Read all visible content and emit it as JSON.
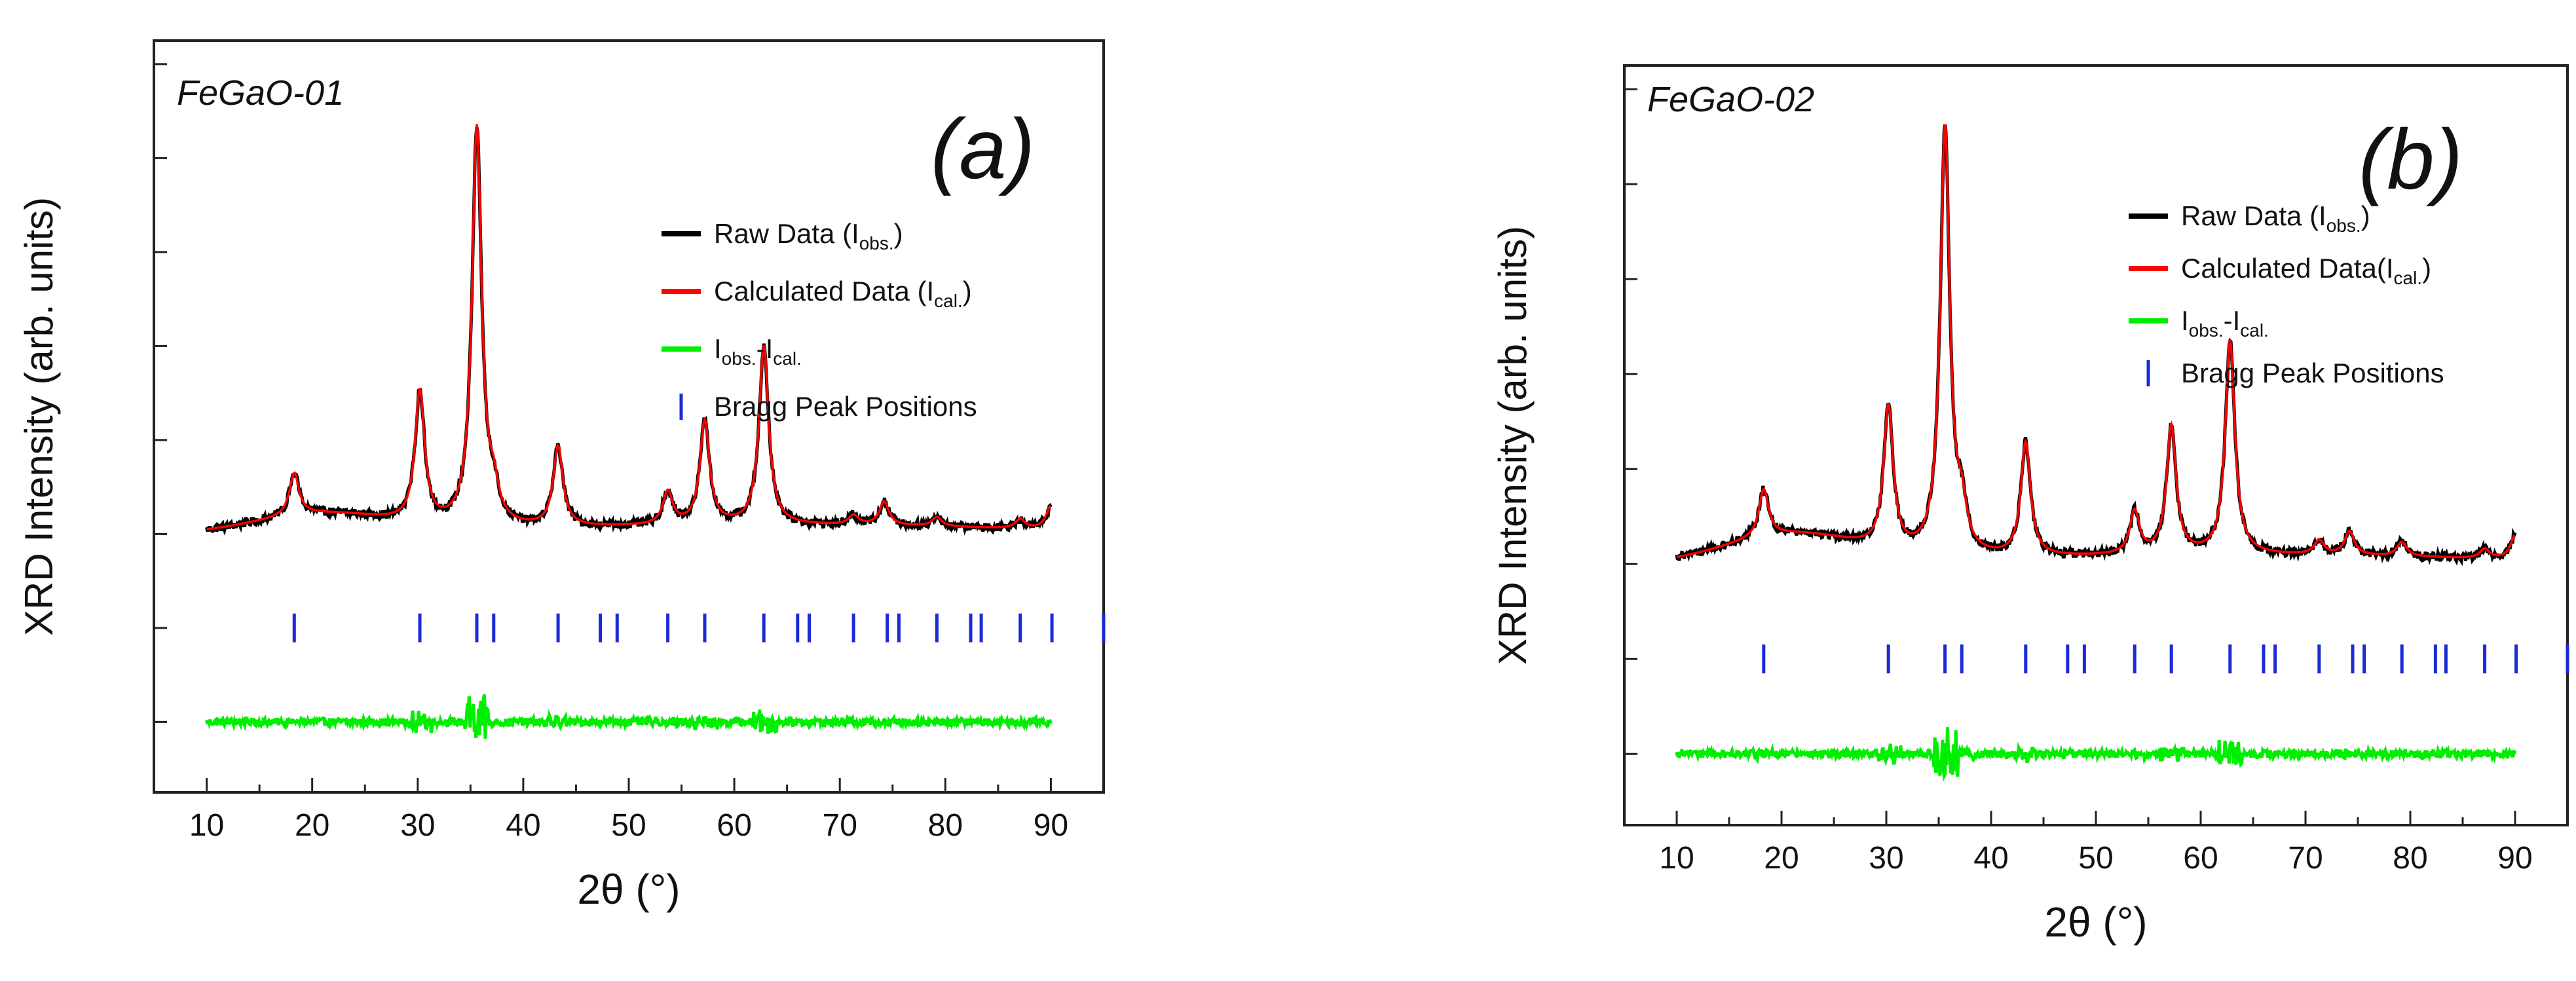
{
  "chart_data": [
    {
      "type": "line",
      "panel_label": "(a)",
      "sample": "FeGaO-01",
      "xlabel": "2θ (°)",
      "ylabel": "XRD  Intensity (arb. units)",
      "xlim": [
        5,
        95
      ],
      "ylim": [
        -0.55,
        1.05
      ],
      "xticks": [
        10,
        20,
        30,
        40,
        50,
        60,
        70,
        80,
        90
      ],
      "legend": {
        "position": "upper-right",
        "entries": [
          {
            "label": "Raw Data (I",
            "sub": "obs.",
            "tail": ")",
            "color": "#000000",
            "style": "line"
          },
          {
            "label": "Calculated Data (I",
            "sub": "cal.",
            "tail": ")",
            "color": "#ff0000",
            "style": "line"
          },
          {
            "label": "I",
            "sub": "obs.",
            "mid": "-I",
            "sub2": "cal.",
            "tail": "",
            "color": "#00ee00",
            "style": "line"
          },
          {
            "label": "Bragg Peak Positions",
            "sub": "",
            "tail": "",
            "color": "#1a2bd6",
            "style": "bar"
          }
        ]
      },
      "background": {
        "start": 0.0,
        "hump_center": 21,
        "hump_height": 0.04,
        "end": 0.0
      },
      "peaks": [
        {
          "x": 18.3,
          "h": 0.09
        },
        {
          "x": 30.2,
          "h": 0.28
        },
        {
          "x": 35.6,
          "h": 0.85
        },
        {
          "x": 37.2,
          "h": 0.06
        },
        {
          "x": 43.3,
          "h": 0.17
        },
        {
          "x": 53.7,
          "h": 0.07
        },
        {
          "x": 57.2,
          "h": 0.22
        },
        {
          "x": 62.8,
          "h": 0.38
        },
        {
          "x": 71.3,
          "h": 0.02
        },
        {
          "x": 74.2,
          "h": 0.05
        },
        {
          "x": 79.2,
          "h": 0.02
        },
        {
          "x": 87.1,
          "h": 0.02
        },
        {
          "x": 90.0,
          "h": 0.05
        }
      ],
      "bragg_positions": [
        18.3,
        30.2,
        35.6,
        37.2,
        43.3,
        47.3,
        48.9,
        53.7,
        57.2,
        62.8,
        66.0,
        67.1,
        71.3,
        74.5,
        75.6,
        79.2,
        82.4,
        83.4,
        87.1,
        90.1,
        95.0
      ],
      "bragg_level": -0.2,
      "difference_level": -0.4
    },
    {
      "type": "line",
      "panel_label": "(b)",
      "sample": "FeGaO-02",
      "xlabel": "2θ (°)",
      "ylabel": "XRD  Intensity (arb. units)",
      "xlim": [
        5,
        95
      ],
      "ylim": [
        -0.55,
        1.05
      ],
      "xticks": [
        10,
        20,
        30,
        40,
        50,
        60,
        70,
        80,
        90
      ],
      "legend": {
        "position": "upper-right",
        "entries": [
          {
            "label": "Raw Data (I",
            "sub": "obs.",
            "tail": ")",
            "color": "#000000",
            "style": "line"
          },
          {
            "label": "Calculated Data(I",
            "sub": "cal.",
            "tail": ")",
            "color": "#ff0000",
            "style": "line"
          },
          {
            "label": "I",
            "sub": "obs.",
            "mid": "-I",
            "sub2": "cal.",
            "tail": "",
            "color": "#00ee00",
            "style": "line"
          },
          {
            "label": "Bragg Peak Positions",
            "sub": "",
            "tail": "",
            "color": "#1a2bd6",
            "style": "bar"
          }
        ]
      },
      "background": {
        "start": 0.0,
        "hump_center": 21,
        "hump_height": 0.06,
        "end": 0.0
      },
      "peaks": [
        {
          "x": 18.3,
          "h": 0.1
        },
        {
          "x": 30.2,
          "h": 0.3
        },
        {
          "x": 35.6,
          "h": 0.9
        },
        {
          "x": 37.2,
          "h": 0.08
        },
        {
          "x": 43.3,
          "h": 0.24
        },
        {
          "x": 53.7,
          "h": 0.09
        },
        {
          "x": 57.2,
          "h": 0.27
        },
        {
          "x": 62.8,
          "h": 0.45
        },
        {
          "x": 71.3,
          "h": 0.03
        },
        {
          "x": 74.2,
          "h": 0.05
        },
        {
          "x": 79.2,
          "h": 0.03
        },
        {
          "x": 87.1,
          "h": 0.02
        },
        {
          "x": 90.0,
          "h": 0.05
        }
      ],
      "bragg_positions": [
        18.3,
        30.2,
        35.6,
        37.2,
        43.3,
        47.3,
        48.9,
        53.7,
        57.2,
        62.8,
        66.0,
        67.1,
        71.3,
        74.5,
        75.6,
        79.2,
        82.4,
        83.4,
        87.1,
        90.1,
        95.0
      ],
      "bragg_level": -0.2,
      "difference_level": -0.4
    }
  ]
}
